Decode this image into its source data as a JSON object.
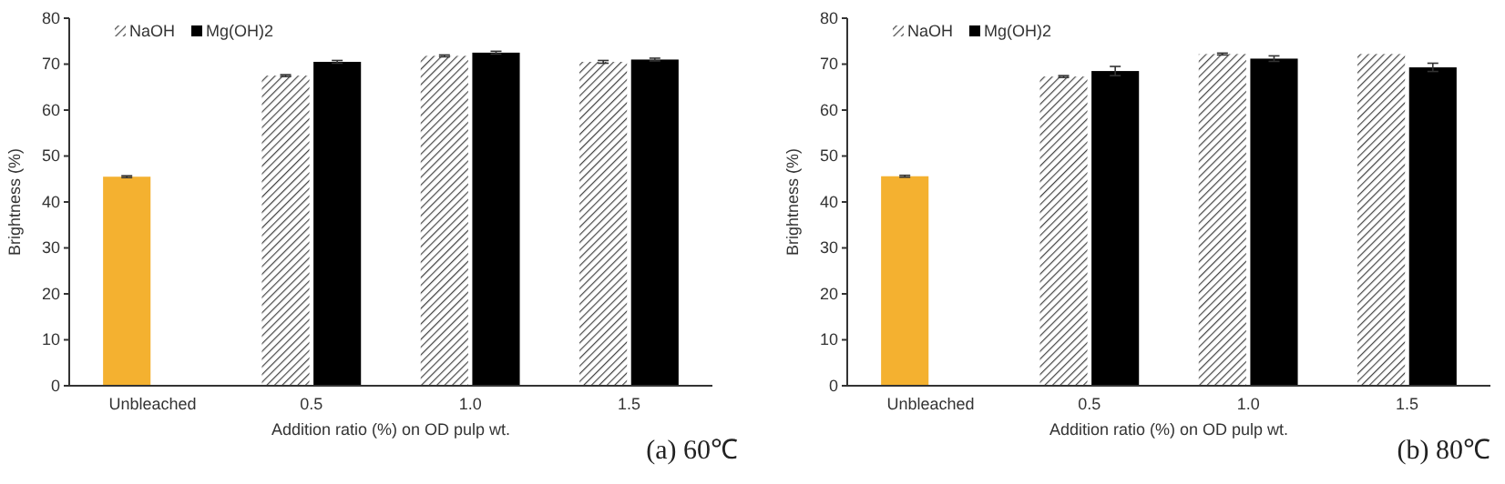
{
  "chart_data": [
    {
      "type": "bar",
      "title": "(a) 60℃",
      "xlabel": "Addition ratio (%) on OD pulp wt.",
      "ylabel": "Brightness (%)",
      "categories": [
        "Unbleached",
        "0.5",
        "1.0",
        "1.5"
      ],
      "ylim": [
        0,
        80
      ],
      "yticks": [
        0,
        10,
        20,
        30,
        40,
        50,
        60,
        70,
        80
      ],
      "grid": false,
      "legend": "top left",
      "series": [
        {
          "name": "NaOH",
          "color": "#444444",
          "colors": [
            "#f4b130",
            "#444444",
            "#444444",
            "#444444"
          ],
          "values": [
            45.5,
            67.5,
            71.8,
            70.5
          ],
          "errors": [
            0.2,
            0.2,
            0.2,
            0.3
          ]
        },
        {
          "name": "Mg(OH)2",
          "color": "#000000",
          "values": [
            null,
            70.5,
            72.5,
            71
          ],
          "errors": [
            null,
            0.3,
            0.3,
            0.3
          ]
        }
      ]
    },
    {
      "type": "bar",
      "title": "(b) 80℃",
      "xlabel": "Addition ratio (%) on OD pulp wt.",
      "ylabel": "Brightness (%)",
      "categories": [
        "Unbleached",
        "0.5",
        "1.0",
        "1.5"
      ],
      "ylim": [
        0,
        80
      ],
      "yticks": [
        0,
        10,
        20,
        30,
        40,
        50,
        60,
        70,
        80
      ],
      "grid": false,
      "legend": "top left",
      "series": [
        {
          "name": "NaOH",
          "color": "#444444",
          "colors": [
            "#f4b130",
            "#444444",
            "#444444",
            "#444444"
          ],
          "values": [
            45.6,
            67.3,
            72.2,
            72.2
          ],
          "errors": [
            0.2,
            0.2,
            0.2,
            null
          ]
        },
        {
          "name": "Mg(OH)2",
          "color": "#000000",
          "values": [
            null,
            68.5,
            71.2,
            69.3
          ],
          "errors": [
            null,
            1.0,
            0.6,
            0.9
          ]
        }
      ]
    }
  ]
}
